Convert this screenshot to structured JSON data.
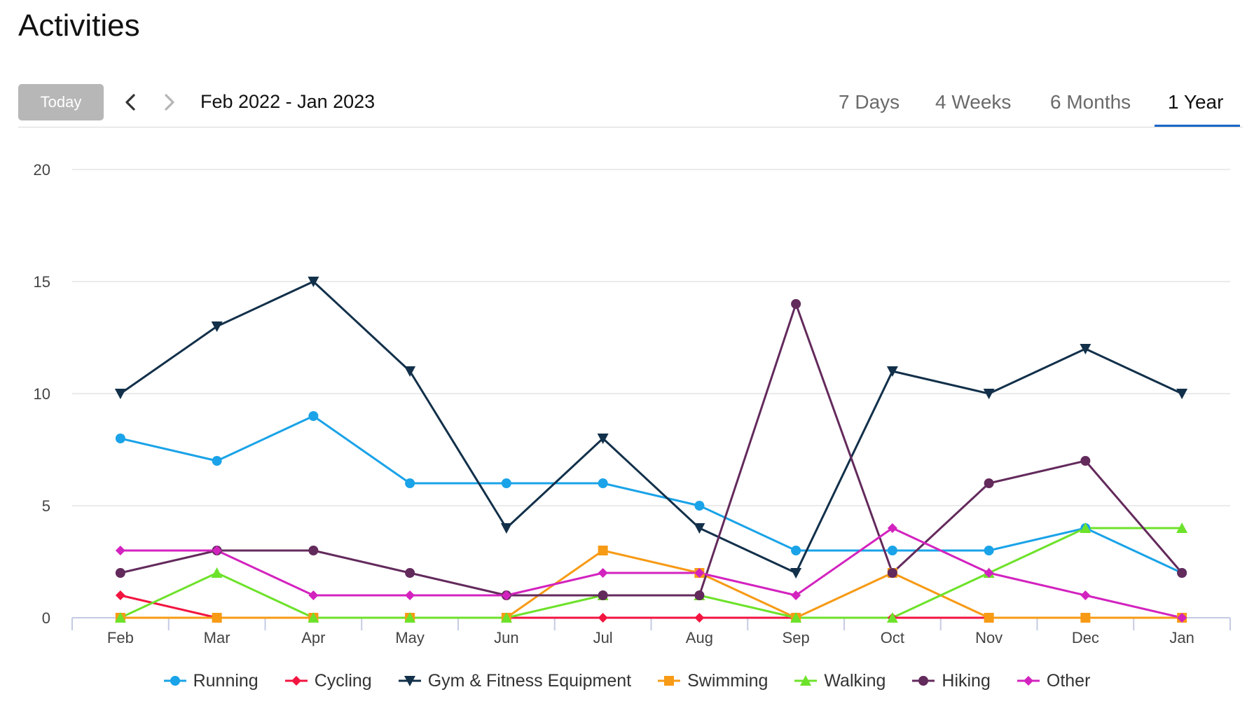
{
  "page": {
    "title": "Activities"
  },
  "toolbar": {
    "today_label": "Today",
    "prev_icon": "chevron-left-icon",
    "next_icon": "chevron-right-icon",
    "date_range": "Feb 2022 - Jan 2023",
    "ranges": [
      "7 Days",
      "4 Weeks",
      "6 Months",
      "1 Year"
    ],
    "active_range": "1 Year"
  },
  "chart_data": {
    "type": "line",
    "categories": [
      "Feb",
      "Mar",
      "Apr",
      "May",
      "Jun",
      "Jul",
      "Aug",
      "Sep",
      "Oct",
      "Nov",
      "Dec",
      "Jan"
    ],
    "ylim": [
      0,
      20
    ],
    "yticks": [
      "0",
      "5",
      "10",
      "15",
      "20"
    ],
    "grid": true,
    "legend_position": "bottom",
    "series": [
      {
        "name": "Running",
        "color": "#1aa3e8",
        "marker": "circle",
        "values": [
          8,
          7,
          9,
          6,
          6,
          6,
          5,
          3,
          3,
          3,
          4,
          2
        ]
      },
      {
        "name": "Cycling",
        "color": "#f21540",
        "marker": "diamond",
        "values": [
          1,
          0,
          0,
          0,
          0,
          0,
          0,
          0,
          0,
          0,
          0,
          0
        ]
      },
      {
        "name": "Gym & Fitness Equipment",
        "color": "#12304a",
        "marker": "triangle-down",
        "values": [
          10,
          13,
          15,
          11,
          4,
          8,
          4,
          2,
          11,
          10,
          12,
          10
        ]
      },
      {
        "name": "Swimming",
        "color": "#f79a15",
        "marker": "square",
        "values": [
          0,
          0,
          0,
          0,
          0,
          3,
          2,
          0,
          2,
          0,
          0,
          0
        ]
      },
      {
        "name": "Walking",
        "color": "#6de22a",
        "marker": "triangle",
        "values": [
          0,
          2,
          0,
          0,
          0,
          1,
          1,
          0,
          0,
          2,
          4,
          4
        ]
      },
      {
        "name": "Hiking",
        "color": "#632a5c",
        "marker": "circle",
        "values": [
          2,
          3,
          3,
          2,
          1,
          1,
          1,
          14,
          2,
          6,
          7,
          2
        ]
      },
      {
        "name": "Other",
        "color": "#d323bf",
        "marker": "diamond",
        "values": [
          3,
          3,
          1,
          1,
          1,
          2,
          2,
          1,
          4,
          2,
          1,
          0
        ]
      }
    ]
  }
}
